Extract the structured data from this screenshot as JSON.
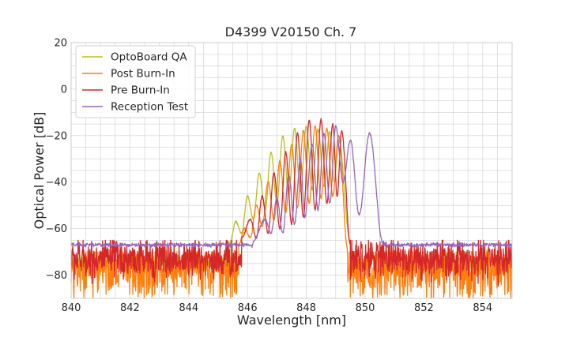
{
  "chart_data": {
    "type": "line",
    "title": "D4399 V20150 Ch. 7",
    "xlabel": "Wavelength [nm]",
    "ylabel": "Optical Power [dB]",
    "xlim": [
      840,
      855
    ],
    "ylim": [
      -90,
      20
    ],
    "xticks": [
      840,
      842,
      844,
      846,
      848,
      850,
      852,
      854
    ],
    "yticks": [
      20,
      0,
      -20,
      -40,
      -60,
      -80
    ],
    "xtick_labels": [
      "840",
      "842",
      "844",
      "846",
      "848",
      "850",
      "852",
      "854"
    ],
    "ytick_labels": [
      "20",
      "0",
      "−20",
      "−40",
      "−60",
      "−80"
    ],
    "grid": true,
    "legend_position": "top-left",
    "series": [
      {
        "name": "OptoBoard QA",
        "color": "#bcbd22",
        "noise_floor": -74,
        "noise_band": [
          -80,
          -68
        ],
        "deep_dips": true,
        "peaks": [
          {
            "x": 845.6,
            "y": -57
          },
          {
            "x": 846.0,
            "y": -46
          },
          {
            "x": 846.4,
            "y": -36
          },
          {
            "x": 846.8,
            "y": -27
          },
          {
            "x": 847.2,
            "y": -20
          },
          {
            "x": 847.6,
            "y": -17
          },
          {
            "x": 848.0,
            "y": -16
          },
          {
            "x": 848.4,
            "y": -17
          },
          {
            "x": 848.8,
            "y": -18
          },
          {
            "x": 849.1,
            "y": -22
          }
        ],
        "dips": [
          {
            "x": 845.8,
            "y": -62
          },
          {
            "x": 846.2,
            "y": -56
          },
          {
            "x": 846.6,
            "y": -52
          },
          {
            "x": 847.0,
            "y": -49
          },
          {
            "x": 847.4,
            "y": -45
          },
          {
            "x": 847.8,
            "y": -44
          },
          {
            "x": 848.2,
            "y": -43
          },
          {
            "x": 848.6,
            "y": -42
          },
          {
            "x": 848.95,
            "y": -40
          }
        ],
        "rise_end": {
          "x": 845.4,
          "y": -66
        },
        "fall_start": {
          "x": 849.5,
          "y": -66
        }
      },
      {
        "name": "Post Burn-In",
        "color": "#ff7f0e",
        "noise_floor": -76,
        "noise_band": [
          -90,
          -70
        ],
        "deep_dips": true,
        "peaks": [
          {
            "x": 845.9,
            "y": -60
          },
          {
            "x": 846.3,
            "y": -50
          },
          {
            "x": 846.7,
            "y": -40
          },
          {
            "x": 847.1,
            "y": -31
          },
          {
            "x": 847.5,
            "y": -24
          },
          {
            "x": 847.9,
            "y": -18
          },
          {
            "x": 848.3,
            "y": -16
          },
          {
            "x": 848.7,
            "y": -17
          },
          {
            "x": 849.1,
            "y": -20
          }
        ],
        "dips": [
          {
            "x": 846.1,
            "y": -64
          },
          {
            "x": 846.5,
            "y": -59
          },
          {
            "x": 846.9,
            "y": -56
          },
          {
            "x": 847.3,
            "y": -53
          },
          {
            "x": 847.7,
            "y": -51
          },
          {
            "x": 848.1,
            "y": -49
          },
          {
            "x": 848.5,
            "y": -47
          },
          {
            "x": 848.9,
            "y": -46
          }
        ],
        "rise_end": {
          "x": 845.7,
          "y": -67
        },
        "fall_start": {
          "x": 849.4,
          "y": -68
        }
      },
      {
        "name": "Pre Burn-In",
        "color": "#d62728",
        "noise_floor": -73,
        "noise_band": [
          -90,
          -65
        ],
        "deep_dips": false,
        "peaks": [
          {
            "x": 846.1,
            "y": -56
          },
          {
            "x": 846.5,
            "y": -46
          },
          {
            "x": 846.9,
            "y": -36
          },
          {
            "x": 847.3,
            "y": -27
          },
          {
            "x": 847.7,
            "y": -19
          },
          {
            "x": 848.1,
            "y": -13
          },
          {
            "x": 848.5,
            "y": -13
          },
          {
            "x": 848.9,
            "y": -15
          },
          {
            "x": 849.2,
            "y": -18
          }
        ],
        "dips": [
          {
            "x": 846.3,
            "y": -64
          },
          {
            "x": 846.7,
            "y": -62
          },
          {
            "x": 847.1,
            "y": -60
          },
          {
            "x": 847.5,
            "y": -58
          },
          {
            "x": 847.9,
            "y": -55
          },
          {
            "x": 848.3,
            "y": -52
          },
          {
            "x": 848.7,
            "y": -49
          },
          {
            "x": 849.05,
            "y": -46
          }
        ],
        "rise_end": {
          "x": 845.8,
          "y": -64
        },
        "fall_start": {
          "x": 849.5,
          "y": -67
        }
      },
      {
        "name": "Reception Test",
        "color": "#9467bd",
        "noise_floor": -67,
        "noise_band": [
          -68.5,
          -66
        ],
        "deep_dips": false,
        "peaks": [
          {
            "x": 846.6,
            "y": -56
          },
          {
            "x": 847.0,
            "y": -47
          },
          {
            "x": 847.4,
            "y": -37
          },
          {
            "x": 847.8,
            "y": -30
          },
          {
            "x": 848.2,
            "y": -24
          },
          {
            "x": 848.6,
            "y": -19
          },
          {
            "x": 849.0,
            "y": -16
          },
          {
            "x": 849.5,
            "y": -22
          },
          {
            "x": 850.15,
            "y": -19
          }
        ],
        "dips": [
          {
            "x": 846.8,
            "y": -62
          },
          {
            "x": 847.2,
            "y": -62
          },
          {
            "x": 847.6,
            "y": -58
          },
          {
            "x": 847.95,
            "y": -55
          },
          {
            "x": 848.4,
            "y": -52
          },
          {
            "x": 848.8,
            "y": -49
          },
          {
            "x": 849.25,
            "y": -40
          },
          {
            "x": 849.8,
            "y": -54
          }
        ],
        "rise_end": {
          "x": 846.2,
          "y": -65
        },
        "fall_start": {
          "x": 850.6,
          "y": -66
        }
      }
    ]
  }
}
